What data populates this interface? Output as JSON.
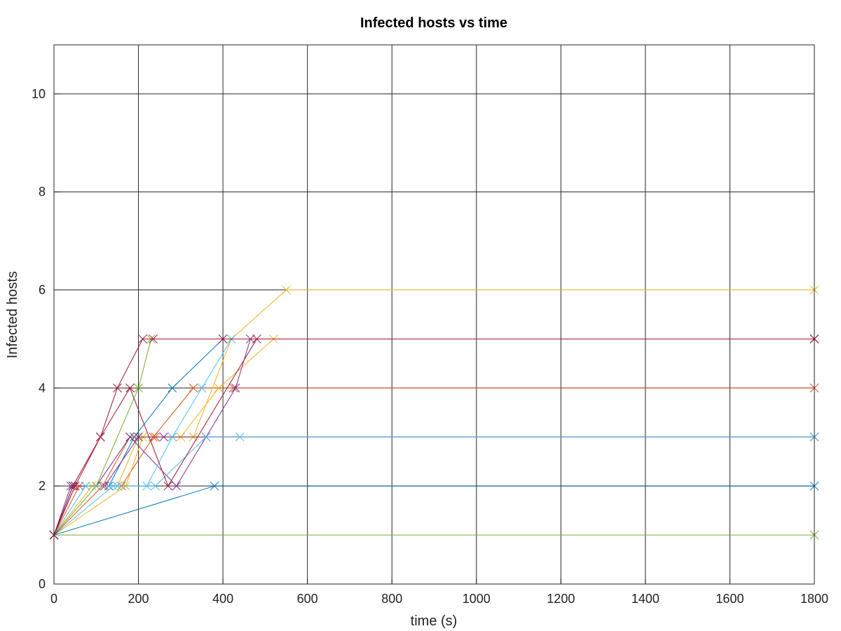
{
  "chart_data": {
    "type": "line",
    "title": "Infected hosts vs time",
    "xlabel": "time (s)",
    "ylabel": "Infected hosts",
    "xlim": [
      0,
      1800
    ],
    "ylim": [
      0,
      11
    ],
    "xticks": [
      0,
      200,
      400,
      600,
      800,
      1000,
      1200,
      1400,
      1600,
      1800
    ],
    "yticks": [
      0,
      2,
      4,
      6,
      8,
      10
    ],
    "grid": true,
    "legend": "none",
    "marker": "x",
    "colors": [
      "#0072bd",
      "#d95319",
      "#edb120",
      "#7e2f8e",
      "#77ac30",
      "#4dbeee",
      "#a2142f"
    ],
    "series": [
      {
        "color": "#0072bd",
        "x": [
          0,
          380,
          1800
        ],
        "y": [
          1,
          2,
          2
        ]
      },
      {
        "color": "#0072bd",
        "x": [
          0,
          45,
          130,
          190,
          280,
          400,
          1800
        ],
        "y": [
          1,
          2,
          2,
          3,
          4,
          5,
          5
        ]
      },
      {
        "color": "#d95319",
        "x": [
          0,
          115,
          180,
          240,
          1800
        ],
        "y": [
          1,
          2,
          3,
          3,
          3
        ]
      },
      {
        "color": "#d95319",
        "x": [
          0,
          60,
          160,
          235,
          330,
          425,
          1800
        ],
        "y": [
          1,
          2,
          2,
          3,
          4,
          4,
          4
        ]
      },
      {
        "color": "#edb120",
        "x": [
          0,
          170,
          210,
          330,
          420,
          550,
          1800
        ],
        "y": [
          1,
          2,
          3,
          3,
          5,
          6,
          6
        ]
      },
      {
        "color": "#edb120",
        "x": [
          0,
          90,
          150,
          200,
          300,
          390,
          520,
          1800
        ],
        "y": [
          1,
          2,
          2,
          3,
          3,
          4,
          5,
          5
        ]
      },
      {
        "color": "#7e2f8e",
        "x": [
          0,
          50,
          100,
          180,
          290,
          430,
          465,
          1800
        ],
        "y": [
          1,
          2,
          2,
          3,
          2,
          4,
          5,
          5
        ]
      },
      {
        "color": "#7e2f8e",
        "x": [
          0,
          40,
          120,
          200,
          260,
          360,
          1800
        ],
        "y": [
          1,
          2,
          2,
          3,
          3,
          3,
          3
        ]
      },
      {
        "color": "#77ac30",
        "x": [
          0,
          1800
        ],
        "y": [
          1,
          1
        ]
      },
      {
        "color": "#77ac30",
        "x": [
          0,
          100,
          200,
          230,
          1800
        ],
        "y": [
          1,
          2,
          4,
          5,
          5
        ]
      },
      {
        "color": "#4dbeee",
        "x": [
          0,
          140,
          220,
          280,
          350,
          420,
          1800
        ],
        "y": [
          1,
          2,
          2,
          3,
          4,
          5,
          5
        ]
      },
      {
        "color": "#4dbeee",
        "x": [
          0,
          75,
          150,
          240,
          360,
          440,
          1800
        ],
        "y": [
          1,
          2,
          2,
          2,
          3,
          3,
          3
        ]
      },
      {
        "color": "#a2142f",
        "x": [
          0,
          45,
          110,
          150,
          210,
          235,
          400,
          1800
        ],
        "y": [
          1,
          2,
          3,
          4,
          5,
          5,
          5,
          5
        ]
      },
      {
        "color": "#a2142f",
        "x": [
          0,
          50,
          110,
          180,
          270,
          480,
          1800
        ],
        "y": [
          1,
          2,
          3,
          4,
          2,
          5,
          5
        ]
      }
    ]
  }
}
